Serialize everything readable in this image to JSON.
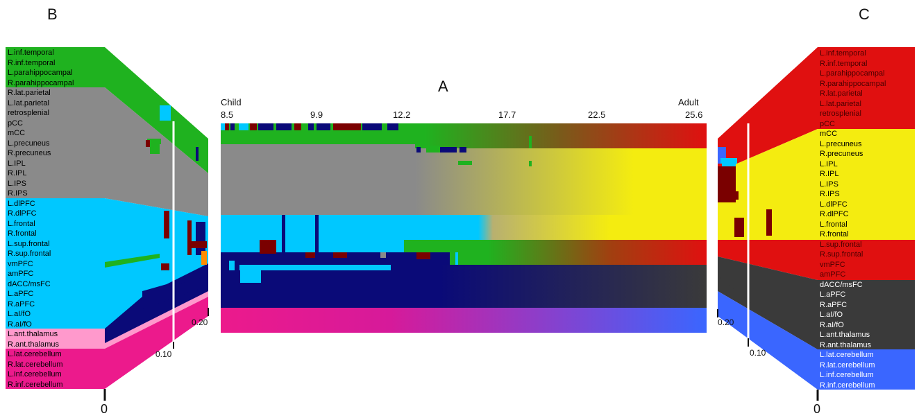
{
  "panels": {
    "a": "A",
    "b": "B",
    "c": "C"
  },
  "timeline": {
    "start_label": "Child",
    "end_label": "Adult",
    "ages": [
      "8.5",
      "9.9",
      "12.2",
      "17.7",
      "22.5",
      "25.6"
    ]
  },
  "left_panel": {
    "scale_ticks": [
      "0",
      "0.10",
      "0.20"
    ],
    "regions": [
      "L.inf.temporal",
      "R.inf.temporal",
      "L.parahippocampal",
      "R.parahippocampal",
      "R.lat.parietal",
      "L.lat.parietal",
      "retrosplenial",
      "pCC",
      "mCC",
      "L.precuneus",
      "R.precuneus",
      "L.IPL",
      "R.IPL",
      "L.IPS",
      "R.IPS",
      "L.dlPFC",
      "R.dlPFC",
      "L.frontal",
      "R.frontal",
      "L.sup.frontal",
      "R.sup.frontal",
      "vmPFC",
      "amPFC",
      "dACC/msFC",
      "L.aPFC",
      "R.aPFC",
      "L.aI/fO",
      "R.aI/fO",
      "L.ant.thalamus",
      "R.ant.thalamus",
      "L.lat.cerebellum",
      "R.lat.cerebellum",
      "L.inf.cerebellum",
      "R.inf.cerebellum"
    ]
  },
  "right_panel": {
    "scale_ticks": [
      "0",
      "0.10",
      "0.20"
    ],
    "regions": [
      "L.inf.temporal",
      "R.inf.temporal",
      "L.parahippocampal",
      "R.parahippocampal",
      "R.lat.parietal",
      "L.lat.parietal",
      "retrosplenial",
      "pCC",
      "mCC",
      "L.precuneus",
      "R.precuneus",
      "L.IPL",
      "R.IPL",
      "L.IPS",
      "R.IPS",
      "L.dlPFC",
      "R.dlPFC",
      "L.frontal",
      "R.frontal",
      "L.sup.frontal",
      "R.sup.frontal",
      "vmPFC",
      "amPFC",
      "dACC/msFC",
      "L.aPFC",
      "R.aPFC",
      "L.aI/fO",
      "R.aI/fO",
      "L.ant.thalamus",
      "R.ant.thalamus",
      "L.lat.cerebellum",
      "R.lat.cerebellum",
      "L.inf.cerebellum",
      "R.inf.cerebellum"
    ]
  },
  "colors": {
    "green": "#1fb21f",
    "gray": "#8a8a8a",
    "cyan": "#00c8ff",
    "navy": "#0a0a78",
    "pink": "#ff99cc",
    "magenta": "#ec1a8c",
    "red": "#e01010",
    "yellow": "#f4ec10",
    "dark": "#3a3a3a",
    "blue": "#3a66ff",
    "darkred": "#7a0000"
  }
}
